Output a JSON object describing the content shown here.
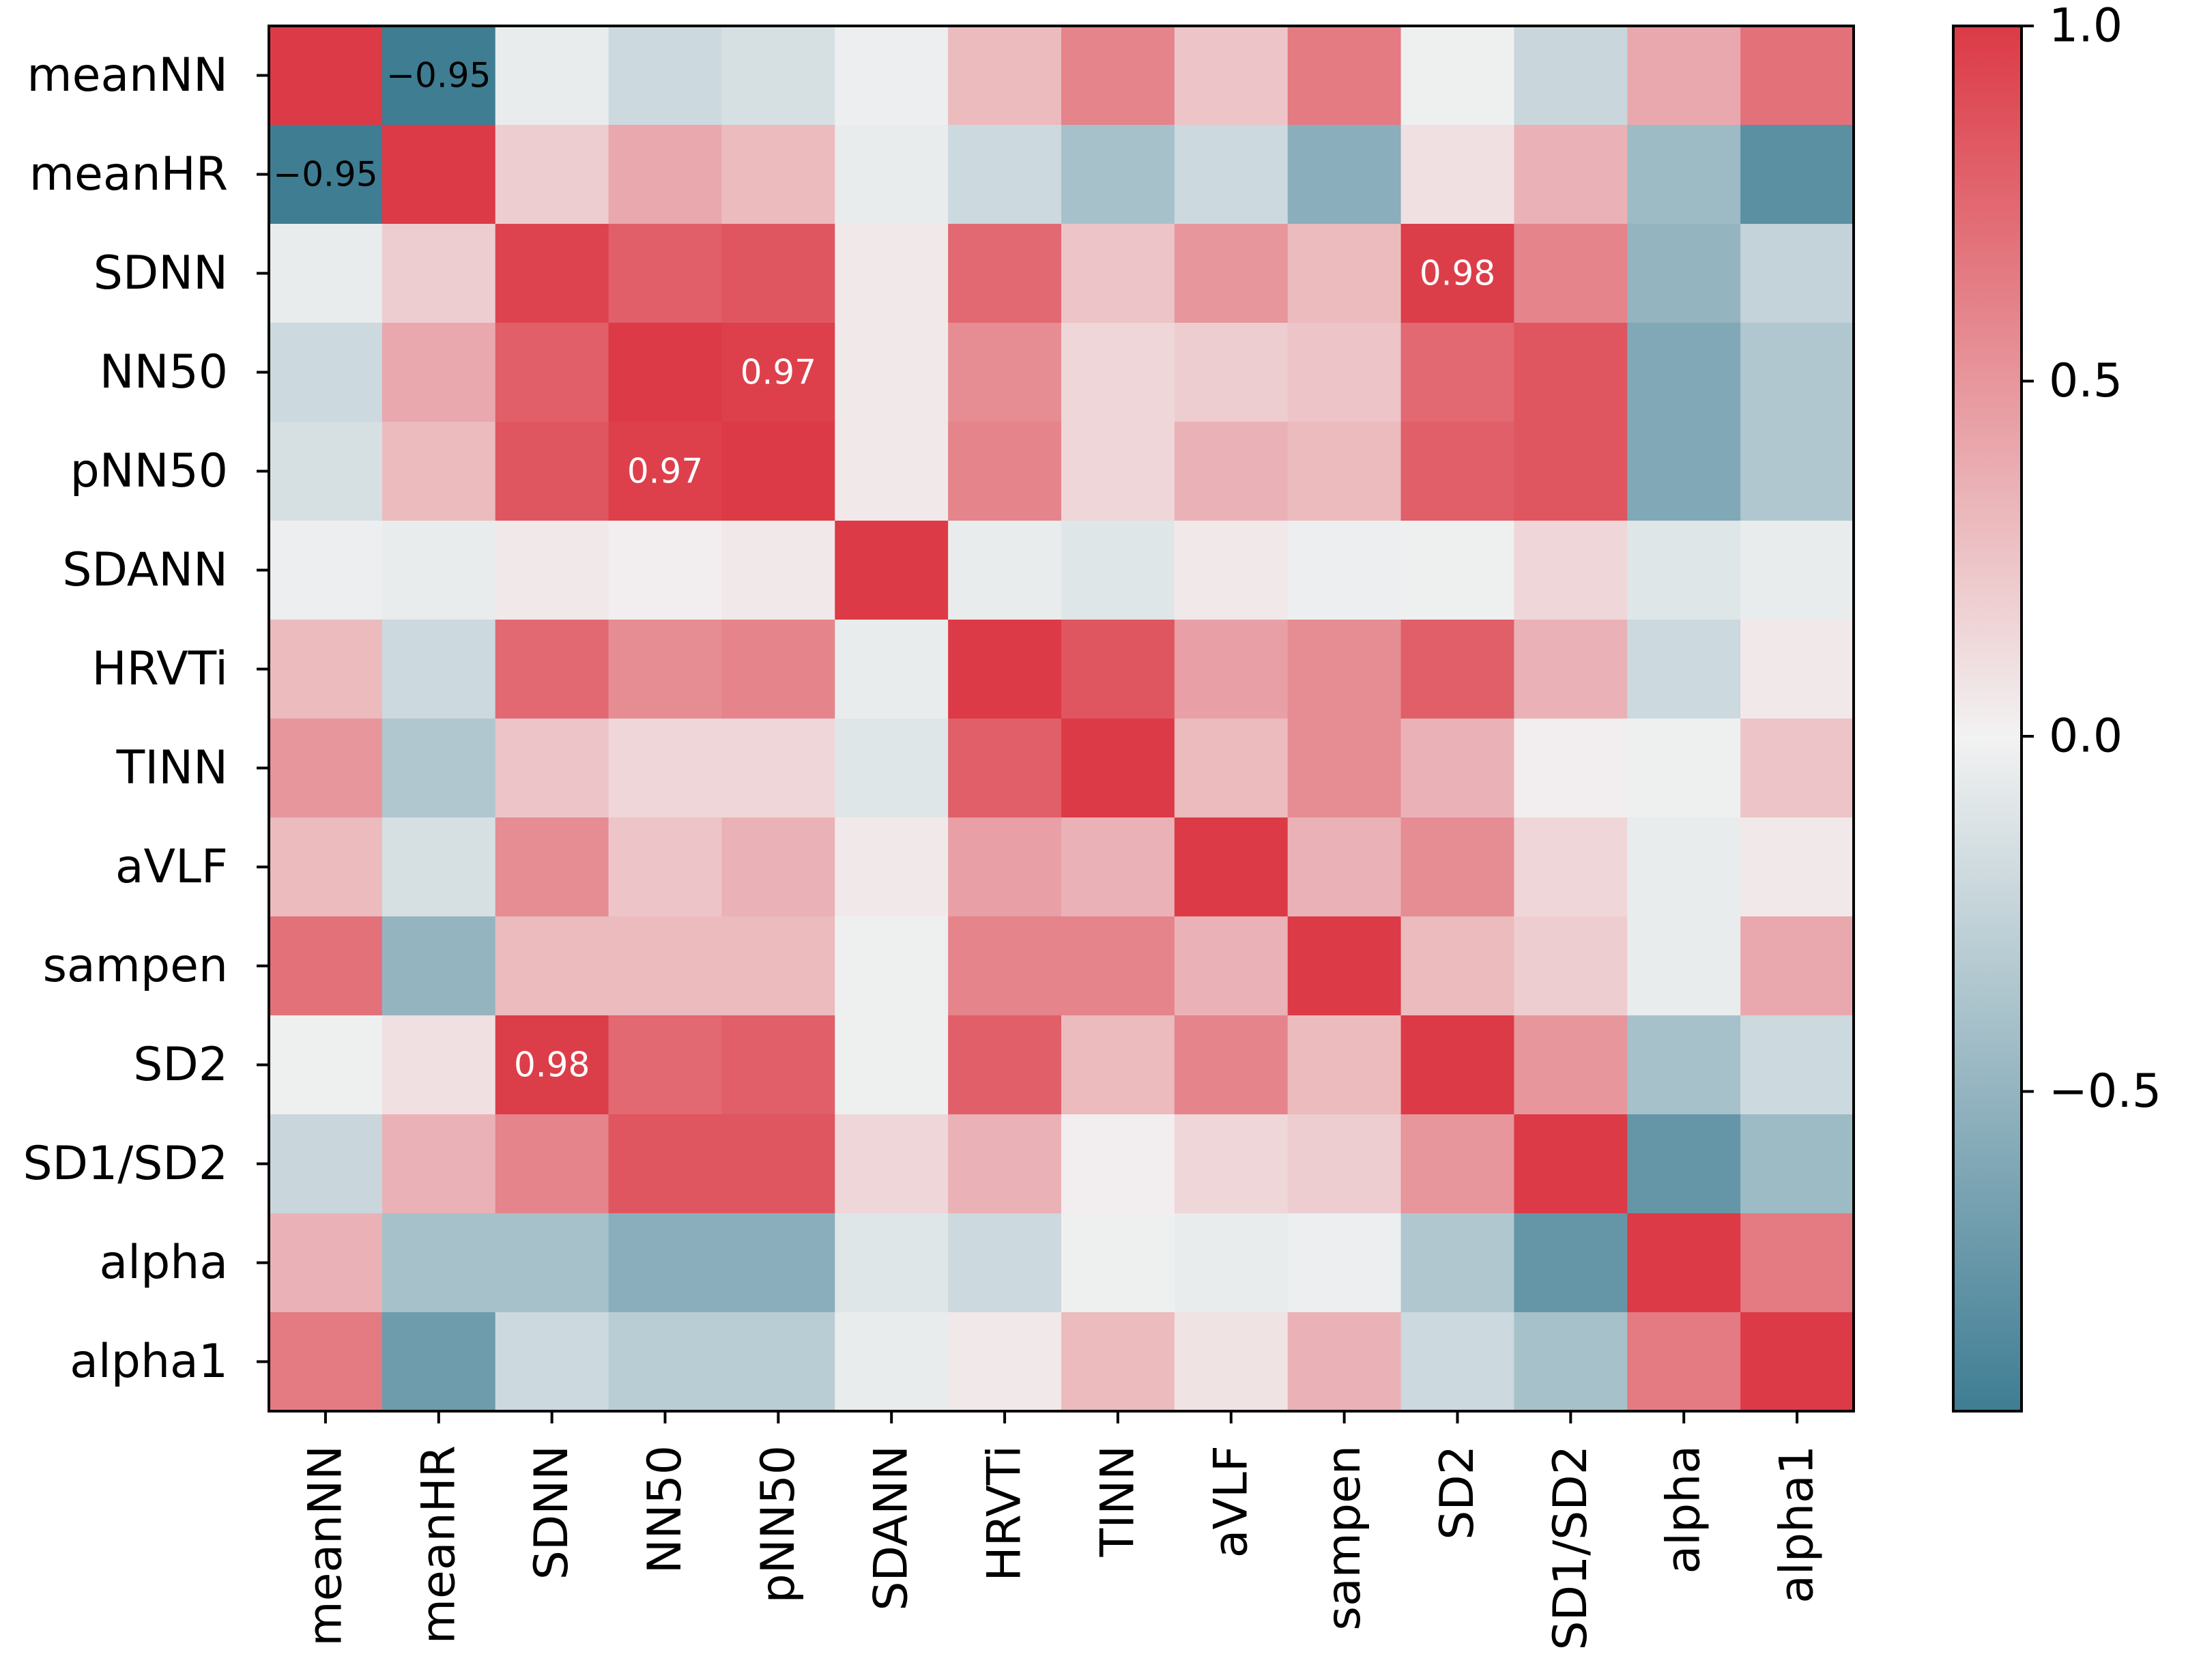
{
  "chart_data": {
    "type": "heatmap",
    "title": "",
    "row_labels": [
      "meanNN",
      "meanHR",
      "SDNN",
      "NN50",
      "pNN50",
      "SDANN",
      "HRVTi",
      "TINN",
      "aVLF",
      "sampen",
      "SD2",
      "SD1/SD2",
      "alpha",
      "alpha1"
    ],
    "col_labels": [
      "meanNN",
      "meanHR",
      "SDNN",
      "NN50",
      "pNN50",
      "SDANN",
      "HRVTi",
      "TINN",
      "aVLF",
      "sampen",
      "SD2",
      "SD1/SD2",
      "alpha",
      "alpha1"
    ],
    "matrix": [
      [
        1.0,
        -0.95,
        -0.05,
        -0.2,
        -0.15,
        -0.03,
        0.3,
        0.6,
        0.25,
        0.65,
        -0.02,
        -0.22,
        0.4,
        0.7
      ],
      [
        -0.95,
        1.0,
        0.2,
        0.4,
        0.3,
        -0.05,
        -0.2,
        -0.4,
        -0.2,
        -0.55,
        0.1,
        0.35,
        -0.45,
        -0.8
      ],
      [
        -0.05,
        0.2,
        0.95,
        0.8,
        0.85,
        0.05,
        0.75,
        0.25,
        0.5,
        0.3,
        0.98,
        0.6,
        -0.5,
        -0.25
      ],
      [
        -0.2,
        0.4,
        0.8,
        1.0,
        0.97,
        0.05,
        0.55,
        0.15,
        0.2,
        0.25,
        0.75,
        0.85,
        -0.6,
        -0.35
      ],
      [
        -0.15,
        0.3,
        0.85,
        0.97,
        1.0,
        0.05,
        0.6,
        0.15,
        0.35,
        0.3,
        0.8,
        0.85,
        -0.6,
        -0.35
      ],
      [
        -0.03,
        -0.05,
        0.05,
        0.02,
        0.05,
        1.0,
        -0.05,
        -0.1,
        0.05,
        -0.03,
        -0.02,
        0.15,
        -0.1,
        -0.05
      ],
      [
        0.3,
        -0.2,
        0.75,
        0.55,
        0.6,
        -0.05,
        1.0,
        0.85,
        0.45,
        0.55,
        0.8,
        0.35,
        -0.2,
        0.05
      ],
      [
        0.5,
        -0.35,
        0.25,
        0.15,
        0.15,
        -0.1,
        0.8,
        1.0,
        0.3,
        0.55,
        0.35,
        0.02,
        -0.02,
        0.25
      ],
      [
        0.3,
        -0.15,
        0.55,
        0.25,
        0.35,
        0.05,
        0.45,
        0.35,
        1.0,
        0.35,
        0.55,
        0.15,
        -0.05,
        0.05
      ],
      [
        0.7,
        -0.5,
        0.3,
        0.3,
        0.3,
        -0.02,
        0.6,
        0.6,
        0.35,
        1.0,
        0.3,
        0.2,
        -0.05,
        0.4
      ],
      [
        -0.02,
        0.1,
        0.98,
        0.75,
        0.8,
        -0.02,
        0.8,
        0.3,
        0.6,
        0.3,
        1.0,
        0.5,
        -0.4,
        -0.2
      ],
      [
        -0.22,
        0.35,
        0.6,
        0.85,
        0.85,
        0.15,
        0.35,
        0.02,
        0.15,
        0.2,
        0.5,
        1.0,
        -0.75,
        -0.45
      ],
      [
        0.35,
        -0.4,
        -0.4,
        -0.55,
        -0.55,
        -0.1,
        -0.2,
        -0.02,
        -0.05,
        -0.03,
        -0.35,
        -0.75,
        1.0,
        0.65
      ],
      [
        0.65,
        -0.7,
        -0.2,
        -0.3,
        -0.3,
        -0.05,
        0.05,
        0.3,
        0.08,
        0.35,
        -0.2,
        -0.4,
        0.65,
        1.0
      ]
    ],
    "annotations": [
      {
        "row": 0,
        "col": 1,
        "text": "−0.95"
      },
      {
        "row": 1,
        "col": 0,
        "text": "−0.95"
      },
      {
        "row": 2,
        "col": 10,
        "text": "0.98"
      },
      {
        "row": 3,
        "col": 4,
        "text": "0.97"
      },
      {
        "row": 4,
        "col": 3,
        "text": "0.97"
      },
      {
        "row": 10,
        "col": 2,
        "text": "0.98"
      }
    ],
    "colorbar": {
      "range": [
        -0.95,
        1.0
      ],
      "ticks": [
        1.0,
        0.5,
        0.0,
        -0.5
      ],
      "tick_labels": [
        "1.0",
        "0.5",
        "0.0",
        "−0.5"
      ],
      "color_negative": "#3f7d93",
      "color_zero": "#f2f2f2",
      "color_positive": "#dc3a46"
    }
  }
}
